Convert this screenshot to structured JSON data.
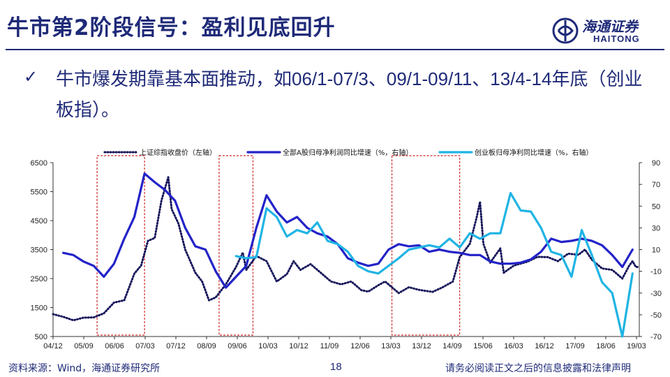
{
  "header": {
    "title": "牛市第2阶段信号：盈利见底回升",
    "logo_cn": "海通证券",
    "logo_en": "HAITONG"
  },
  "point": {
    "bullet": "✓",
    "text_a": "牛市爆发期靠基本面推动，如",
    "text_b": "06/1-07/3、09/1-09/11、13/4-14",
    "text_c": "年底（创业板指）。"
  },
  "footer": {
    "source": "资料来源：Wind，海通证券研究所",
    "page": "18",
    "disclaimer": "请务必阅读正文之后的信息披露和法律声明"
  },
  "colors": {
    "navy": "#1f2a78",
    "series_index": "#14145a",
    "series_all_a": "#2323c8",
    "series_chinext": "#20b4e4",
    "highlight_box": "#cc2b2b"
  },
  "chart_data": {
    "type": "line",
    "x_ticks": [
      "04/12",
      "05/09",
      "06/06",
      "07/03",
      "07/12",
      "08/09",
      "09/06",
      "10/03",
      "10/12",
      "11/09",
      "12/06",
      "13/03",
      "13/12",
      "14/09",
      "15/06",
      "16/03",
      "16/12",
      "17/09",
      "18/06",
      "19/03"
    ],
    "xlim": [
      "2004-12",
      "2019-05"
    ],
    "yleft": {
      "ticks": [
        500,
        1500,
        2500,
        3500,
        4500,
        5500,
        6500
      ],
      "ylim": [
        500,
        6500
      ]
    },
    "yright": {
      "ticks": [
        -70,
        -50,
        -30,
        -10,
        10,
        30,
        50,
        70,
        90
      ],
      "ylim": [
        -70,
        90
      ]
    },
    "grid": false,
    "legend_position": "top",
    "highlight_periods": [
      [
        "2006-01",
        "2007-03"
      ],
      [
        "2009-01",
        "2009-11"
      ],
      [
        "2013-04",
        "2014-12"
      ]
    ],
    "series": [
      {
        "name": "上证综指收盘价（左轴）",
        "axis": "left",
        "style": "dotted",
        "points": [
          [
            "2004-12",
            1270
          ],
          [
            "2005-03",
            1180
          ],
          [
            "2005-06",
            1060
          ],
          [
            "2005-09",
            1150
          ],
          [
            "2005-12",
            1160
          ],
          [
            "2006-03",
            1300
          ],
          [
            "2006-06",
            1670
          ],
          [
            "2006-09",
            1750
          ],
          [
            "2006-12",
            2670
          ],
          [
            "2007-02",
            2950
          ],
          [
            "2007-04",
            3800
          ],
          [
            "2007-06",
            3900
          ],
          [
            "2007-08",
            5200
          ],
          [
            "2007-10",
            6000
          ],
          [
            "2007-11",
            4900
          ],
          [
            "2008-01",
            4400
          ],
          [
            "2008-03",
            3500
          ],
          [
            "2008-06",
            2700
          ],
          [
            "2008-08",
            2400
          ],
          [
            "2008-10",
            1750
          ],
          [
            "2008-12",
            1850
          ],
          [
            "2009-03",
            2300
          ],
          [
            "2009-06",
            2900
          ],
          [
            "2009-08",
            3400
          ],
          [
            "2009-09",
            2800
          ],
          [
            "2009-12",
            3280
          ],
          [
            "2010-03",
            3100
          ],
          [
            "2010-06",
            2400
          ],
          [
            "2010-09",
            2650
          ],
          [
            "2010-11",
            3100
          ],
          [
            "2011-01",
            2800
          ],
          [
            "2011-04",
            3000
          ],
          [
            "2011-07",
            2700
          ],
          [
            "2011-10",
            2400
          ],
          [
            "2012-01",
            2300
          ],
          [
            "2012-04",
            2400
          ],
          [
            "2012-07",
            2100
          ],
          [
            "2012-09",
            2050
          ],
          [
            "2012-12",
            2270
          ],
          [
            "2013-02",
            2400
          ],
          [
            "2013-06",
            2000
          ],
          [
            "2013-09",
            2200
          ],
          [
            "2013-12",
            2110
          ],
          [
            "2014-04",
            2040
          ],
          [
            "2014-07",
            2200
          ],
          [
            "2014-10",
            2400
          ],
          [
            "2014-12",
            3240
          ],
          [
            "2015-03",
            3700
          ],
          [
            "2015-05",
            4600
          ],
          [
            "2015-06",
            5150
          ],
          [
            "2015-07",
            3700
          ],
          [
            "2015-09",
            3050
          ],
          [
            "2015-12",
            3540
          ],
          [
            "2016-01",
            2700
          ],
          [
            "2016-04",
            2950
          ],
          [
            "2016-08",
            3080
          ],
          [
            "2016-11",
            3250
          ],
          [
            "2017-02",
            3240
          ],
          [
            "2017-05",
            3100
          ],
          [
            "2017-08",
            3360
          ],
          [
            "2017-11",
            3320
          ],
          [
            "2018-01",
            3500
          ],
          [
            "2018-03",
            3150
          ],
          [
            "2018-06",
            2850
          ],
          [
            "2018-09",
            2800
          ],
          [
            "2018-12",
            2500
          ],
          [
            "2019-02",
            2940
          ],
          [
            "2019-03",
            3100
          ],
          [
            "2019-04",
            2900
          ],
          [
            "2019-05",
            2900
          ]
        ]
      },
      {
        "name": "全部A股归母净利润同比增速（%，右轴）",
        "axis": "right",
        "style": "solid",
        "points": [
          [
            "2005-03",
            7
          ],
          [
            "2005-06",
            5
          ],
          [
            "2005-09",
            -1
          ],
          [
            "2005-12",
            -5
          ],
          [
            "2006-03",
            -15
          ],
          [
            "2006-06",
            -3
          ],
          [
            "2006-09",
            20
          ],
          [
            "2006-12",
            40
          ],
          [
            "2007-03",
            80
          ],
          [
            "2007-06",
            72
          ],
          [
            "2007-09",
            65
          ],
          [
            "2007-12",
            55
          ],
          [
            "2008-03",
            30
          ],
          [
            "2008-06",
            13
          ],
          [
            "2008-09",
            10
          ],
          [
            "2008-12",
            -10
          ],
          [
            "2009-03",
            -25
          ],
          [
            "2009-06",
            -15
          ],
          [
            "2009-09",
            -5
          ],
          [
            "2009-12",
            30
          ],
          [
            "2010-03",
            60
          ],
          [
            "2010-06",
            45
          ],
          [
            "2010-09",
            35
          ],
          [
            "2010-12",
            40
          ],
          [
            "2011-03",
            30
          ],
          [
            "2011-06",
            25
          ],
          [
            "2011-09",
            22
          ],
          [
            "2011-12",
            15
          ],
          [
            "2012-03",
            2
          ],
          [
            "2012-06",
            -2
          ],
          [
            "2012-09",
            -5
          ],
          [
            "2012-12",
            -3
          ],
          [
            "2013-03",
            10
          ],
          [
            "2013-06",
            15
          ],
          [
            "2013-09",
            13
          ],
          [
            "2013-12",
            14
          ],
          [
            "2014-03",
            8
          ],
          [
            "2014-06",
            10
          ],
          [
            "2014-09",
            8
          ],
          [
            "2014-12",
            7
          ],
          [
            "2015-03",
            5
          ],
          [
            "2015-06",
            5
          ],
          [
            "2015-09",
            -1
          ],
          [
            "2015-12",
            -3
          ],
          [
            "2016-03",
            -3
          ],
          [
            "2016-06",
            -2
          ],
          [
            "2016-09",
            1
          ],
          [
            "2016-12",
            8
          ],
          [
            "2017-03",
            20
          ],
          [
            "2017-06",
            17
          ],
          [
            "2017-09",
            18
          ],
          [
            "2017-12",
            20
          ],
          [
            "2018-03",
            18
          ],
          [
            "2018-06",
            14
          ],
          [
            "2018-09",
            5
          ],
          [
            "2018-12",
            -6
          ],
          [
            "2019-03",
            10
          ]
        ]
      },
      {
        "name": "创业板归母净利同比增速（%，右轴）",
        "axis": "right",
        "style": "solid",
        "points": [
          [
            "2009-06",
            4
          ],
          [
            "2009-09",
            2
          ],
          [
            "2009-12",
            3
          ],
          [
            "2010-03",
            48
          ],
          [
            "2010-06",
            40
          ],
          [
            "2010-09",
            22
          ],
          [
            "2010-12",
            28
          ],
          [
            "2011-03",
            25
          ],
          [
            "2011-06",
            35
          ],
          [
            "2011-09",
            18
          ],
          [
            "2011-12",
            15
          ],
          [
            "2012-03",
            8
          ],
          [
            "2012-06",
            -5
          ],
          [
            "2012-09",
            -10
          ],
          [
            "2012-12",
            -12
          ],
          [
            "2013-03",
            -5
          ],
          [
            "2013-06",
            2
          ],
          [
            "2013-09",
            10
          ],
          [
            "2013-12",
            12
          ],
          [
            "2014-03",
            14
          ],
          [
            "2014-06",
            12
          ],
          [
            "2014-09",
            20
          ],
          [
            "2014-12",
            12
          ],
          [
            "2015-03",
            25
          ],
          [
            "2015-06",
            20
          ],
          [
            "2015-09",
            25
          ],
          [
            "2015-12",
            25
          ],
          [
            "2016-03",
            62
          ],
          [
            "2016-06",
            46
          ],
          [
            "2016-09",
            45
          ],
          [
            "2016-12",
            30
          ],
          [
            "2017-03",
            8
          ],
          [
            "2017-06",
            5
          ],
          [
            "2017-09",
            -15
          ],
          [
            "2017-12",
            28
          ],
          [
            "2018-03",
            5
          ],
          [
            "2018-06",
            -20
          ],
          [
            "2018-09",
            -30
          ],
          [
            "2018-12",
            -70
          ],
          [
            "2019-03",
            -12
          ]
        ]
      }
    ]
  }
}
